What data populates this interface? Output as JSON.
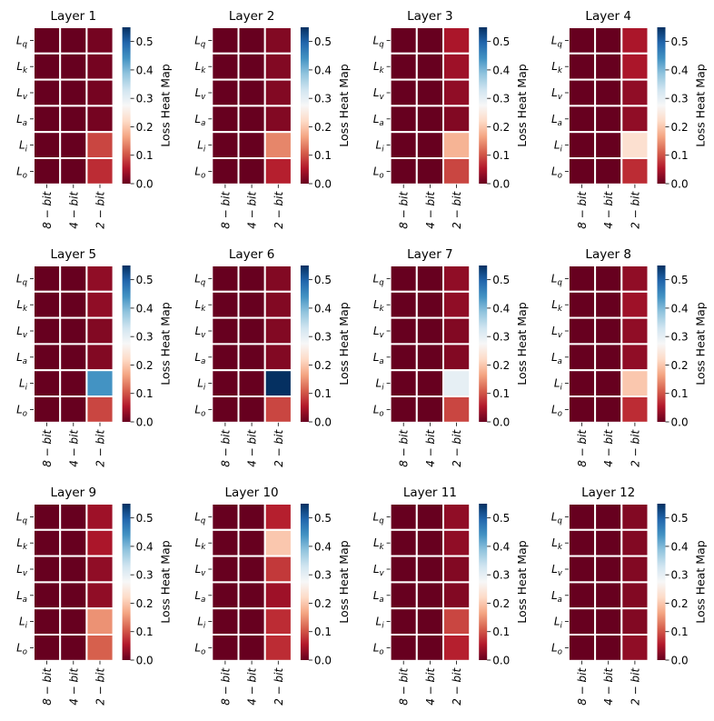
{
  "chart_data": {
    "type": "heatmap",
    "colorbar": {
      "label": "Loss Heat Map",
      "min": 0.0,
      "max": 0.55,
      "ticks": [
        0.0,
        0.1,
        0.2,
        0.3,
        0.4,
        0.5
      ],
      "colormap": "RdBu"
    },
    "rows": [
      {
        "base": "L",
        "sub": "q"
      },
      {
        "base": "L",
        "sub": "k"
      },
      {
        "base": "L",
        "sub": "v"
      },
      {
        "base": "L",
        "sub": "a"
      },
      {
        "base": "L",
        "sub": "i"
      },
      {
        "base": "L",
        "sub": "o"
      }
    ],
    "columns": [
      "8 − bit",
      "4 − bit",
      "2 − bit"
    ],
    "panels": [
      {
        "title": "Layer 1",
        "values": [
          [
            0.0,
            0.0,
            0.01
          ],
          [
            0.0,
            0.0,
            0.01
          ],
          [
            0.0,
            0.0,
            0.01
          ],
          [
            0.0,
            0.0,
            0.01
          ],
          [
            0.0,
            0.0,
            0.09
          ],
          [
            0.0,
            0.0,
            0.07
          ]
        ]
      },
      {
        "title": "Layer 2",
        "values": [
          [
            0.0,
            0.0,
            0.02
          ],
          [
            0.0,
            0.0,
            0.02
          ],
          [
            0.0,
            0.0,
            0.02
          ],
          [
            0.0,
            0.0,
            0.02
          ],
          [
            0.0,
            0.0,
            0.14
          ],
          [
            0.0,
            0.0,
            0.06
          ]
        ]
      },
      {
        "title": "Layer 3",
        "values": [
          [
            0.0,
            0.0,
            0.05
          ],
          [
            0.0,
            0.0,
            0.04
          ],
          [
            0.0,
            0.0,
            0.03
          ],
          [
            0.0,
            0.0,
            0.02
          ],
          [
            0.0,
            0.0,
            0.18
          ],
          [
            0.0,
            0.0,
            0.09
          ]
        ]
      },
      {
        "title": "Layer 4",
        "values": [
          [
            0.0,
            0.0,
            0.05
          ],
          [
            0.0,
            0.0,
            0.05
          ],
          [
            0.0,
            0.0,
            0.03
          ],
          [
            0.0,
            0.0,
            0.03
          ],
          [
            0.0,
            0.0,
            0.23
          ],
          [
            0.0,
            0.0,
            0.07
          ]
        ]
      },
      {
        "title": "Layer 5",
        "values": [
          [
            0.0,
            0.0,
            0.03
          ],
          [
            0.0,
            0.0,
            0.03
          ],
          [
            0.0,
            0.0,
            0.02
          ],
          [
            0.0,
            0.0,
            0.02
          ],
          [
            0.0,
            0.0,
            0.44
          ],
          [
            0.0,
            0.0,
            0.09
          ]
        ]
      },
      {
        "title": "Layer 6",
        "values": [
          [
            0.0,
            0.0,
            0.02
          ],
          [
            0.0,
            0.0,
            0.02
          ],
          [
            0.0,
            0.0,
            0.02
          ],
          [
            0.0,
            0.0,
            0.02
          ],
          [
            0.0,
            0.0,
            0.55
          ],
          [
            0.0,
            0.0,
            0.09
          ]
        ]
      },
      {
        "title": "Layer 7",
        "values": [
          [
            0.0,
            0.0,
            0.03
          ],
          [
            0.0,
            0.0,
            0.03
          ],
          [
            0.0,
            0.0,
            0.02
          ],
          [
            0.0,
            0.0,
            0.02
          ],
          [
            0.0,
            0.0,
            0.3
          ],
          [
            0.0,
            0.0,
            0.09
          ]
        ]
      },
      {
        "title": "Layer 8",
        "values": [
          [
            0.0,
            0.0,
            0.03
          ],
          [
            0.0,
            0.0,
            0.04
          ],
          [
            0.0,
            0.0,
            0.03
          ],
          [
            0.0,
            0.0,
            0.03
          ],
          [
            0.0,
            0.0,
            0.2
          ],
          [
            0.0,
            0.0,
            0.07
          ]
        ]
      },
      {
        "title": "Layer 9",
        "values": [
          [
            0.0,
            0.0,
            0.04
          ],
          [
            0.0,
            0.0,
            0.05
          ],
          [
            0.0,
            0.0,
            0.03
          ],
          [
            0.0,
            0.0,
            0.03
          ],
          [
            0.0,
            0.0,
            0.15
          ],
          [
            0.0,
            0.0,
            0.11
          ]
        ]
      },
      {
        "title": "Layer 10",
        "values": [
          [
            0.0,
            0.0,
            0.06
          ],
          [
            0.0,
            0.0,
            0.2
          ],
          [
            0.0,
            0.0,
            0.08
          ],
          [
            0.0,
            0.0,
            0.04
          ],
          [
            0.0,
            0.0,
            0.07
          ],
          [
            0.0,
            0.0,
            0.07
          ]
        ]
      },
      {
        "title": "Layer 11",
        "values": [
          [
            0.0,
            0.0,
            0.03
          ],
          [
            0.0,
            0.0,
            0.03
          ],
          [
            0.0,
            0.0,
            0.02
          ],
          [
            0.0,
            0.0,
            0.02
          ],
          [
            0.0,
            0.0,
            0.09
          ],
          [
            0.0,
            0.0,
            0.06
          ]
        ]
      },
      {
        "title": "Layer 12",
        "values": [
          [
            0.0,
            0.0,
            0.02
          ],
          [
            0.0,
            0.0,
            0.02
          ],
          [
            0.0,
            0.0,
            0.02
          ],
          [
            0.0,
            0.0,
            0.02
          ],
          [
            0.0,
            0.0,
            0.02
          ],
          [
            0.0,
            0.0,
            0.03
          ]
        ]
      }
    ]
  }
}
